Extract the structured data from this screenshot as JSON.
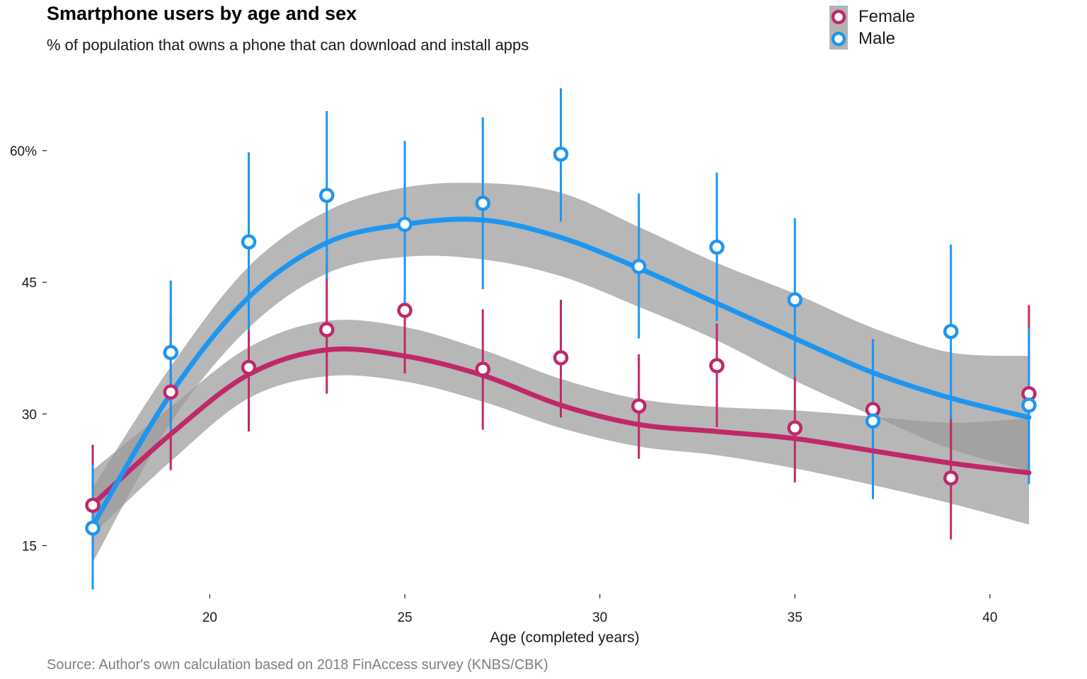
{
  "chart_data": {
    "type": "line",
    "title": "Smartphone users by age and sex",
    "subtitle": "% of population that owns a phone that can download and install apps",
    "xlabel": "Age (completed years)",
    "ylabel": "",
    "source": "Source: Author's own calculation based on 2018 FinAccess survey (KNBS/CBK)",
    "xlim": [
      16.6,
      41.4
    ],
    "ylim": [
      9.8,
      67
    ],
    "x_ticks": [
      20,
      25,
      30,
      35,
      40
    ],
    "y_ticks": [
      15,
      30,
      45,
      60
    ],
    "y_tick_labels": [
      "15",
      "30",
      "45",
      "60%"
    ],
    "legend_position": "top-right",
    "series": [
      {
        "name": "Female",
        "color": "#c0286a",
        "x": [
          17,
          19,
          21,
          23,
          25,
          27,
          29,
          31,
          33,
          35,
          37,
          39,
          41
        ],
        "y": [
          19.6,
          32.5,
          35.3,
          39.6,
          41.8,
          35.1,
          36.4,
          30.9,
          35.5,
          28.4,
          30.5,
          22.7,
          32.3
        ],
        "error_low": [
          13.8,
          23.6,
          28.0,
          32.3,
          34.6,
          28.2,
          29.6,
          24.9,
          28.5,
          22.2,
          23.8,
          15.7,
          22.5
        ],
        "error_high": [
          26.5,
          41.4,
          42.6,
          47.3,
          48.6,
          41.9,
          43.0,
          36.8,
          40.3,
          34.3,
          38.5,
          29.8,
          42.4
        ],
        "smooth": [
          19.7,
          27.7,
          34.5,
          37.3,
          36.6,
          34.4,
          31.0,
          28.8,
          28.0,
          27.2,
          25.8,
          24.4,
          23.3
        ],
        "band_low": [
          16.3,
          24.6,
          31.8,
          34.3,
          33.7,
          31.4,
          28.4,
          26.3,
          25.3,
          23.8,
          21.9,
          19.8,
          17.4
        ],
        "band_high": [
          23.6,
          30.8,
          37.6,
          40.6,
          39.9,
          37.3,
          34.0,
          31.7,
          30.8,
          30.4,
          29.7,
          29.0,
          29.5
        ]
      },
      {
        "name": "Male",
        "color": "#1e96f0",
        "x": [
          17,
          19,
          21,
          23,
          25,
          27,
          29,
          31,
          33,
          35,
          37,
          39,
          41
        ],
        "y": [
          17.0,
          37.0,
          49.6,
          54.9,
          51.6,
          54.0,
          59.6,
          46.8,
          49.0,
          43.0,
          29.2,
          39.4,
          31.0
        ],
        "error_low": [
          10.0,
          28.0,
          39.5,
          45.4,
          42.6,
          44.2,
          51.9,
          38.6,
          40.6,
          34.2,
          20.3,
          29.4,
          22.0
        ],
        "error_high": [
          24.2,
          45.2,
          59.8,
          64.5,
          61.1,
          63.8,
          67.1,
          55.1,
          57.5,
          52.3,
          38.4,
          49.3,
          39.8
        ],
        "smooth": [
          17.3,
          32.3,
          43.3,
          49.5,
          51.6,
          52.1,
          50.1,
          46.6,
          42.6,
          38.6,
          34.7,
          31.8,
          29.6
        ],
        "band_low": [
          13.1,
          29.0,
          39.8,
          46.0,
          47.9,
          47.6,
          45.7,
          42.2,
          38.4,
          33.8,
          29.8,
          26.0,
          23.5
        ],
        "band_high": [
          21.6,
          35.4,
          46.8,
          53.1,
          55.8,
          56.3,
          55.2,
          51.3,
          47.2,
          43.7,
          39.8,
          37.0,
          36.6
        ]
      }
    ]
  }
}
